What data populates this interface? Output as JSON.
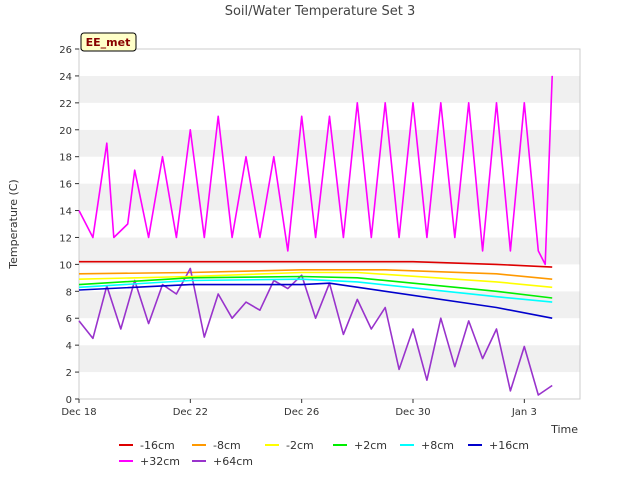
{
  "chart_data": {
    "type": "line",
    "title": "Soil/Water Temperature Set 3",
    "badge": "EE_met",
    "xlabel": "Time",
    "ylabel": "Temperature (C)",
    "ylim": [
      0,
      26
    ],
    "yticks": [
      0,
      2,
      4,
      6,
      8,
      10,
      12,
      14,
      16,
      18,
      20,
      22,
      24,
      26
    ],
    "xlim": [
      "2022-12-18",
      "2023-01-05"
    ],
    "xticks": [
      {
        "date": "2022-12-18",
        "label": "Dec 18"
      },
      {
        "date": "2022-12-22",
        "label": "Dec 22"
      },
      {
        "date": "2022-12-26",
        "label": "Dec 26"
      },
      {
        "date": "2022-12-30",
        "label": "Dec 30"
      },
      {
        "date": "2023-01-03",
        "label": "Jan 3"
      }
    ],
    "grid": "horizontal alternating bands",
    "legend_position": "bottom",
    "series": [
      {
        "name": "-16cm",
        "color": "#dd0000",
        "x": [
          "2022-12-18",
          "2022-12-22",
          "2022-12-26",
          "2022-12-30",
          "2023-01-02",
          "2023-01-04"
        ],
        "y": [
          10.2,
          10.2,
          10.2,
          10.2,
          10.0,
          9.8
        ]
      },
      {
        "name": "+32cm",
        "color": "#ff00ff",
        "x": [
          "2022-12-18",
          "2022-12-18 12:00",
          "2022-12-19",
          "2022-12-19 06:00",
          "2022-12-19 18:00",
          "2022-12-20",
          "2022-12-20 12:00",
          "2022-12-21",
          "2022-12-21 12:00",
          "2022-12-22",
          "2022-12-22 12:00",
          "2022-12-23",
          "2022-12-23 12:00",
          "2022-12-24",
          "2022-12-24 12:00",
          "2022-12-25",
          "2022-12-25 12:00",
          "2022-12-26",
          "2022-12-26 12:00",
          "2022-12-27",
          "2022-12-27 12:00",
          "2022-12-28",
          "2022-12-28 12:00",
          "2022-12-29",
          "2022-12-29 12:00",
          "2022-12-30",
          "2022-12-30 12:00",
          "2022-12-31",
          "2022-12-31 12:00",
          "2023-01-01",
          "2023-01-01 12:00",
          "2023-01-02",
          "2023-01-02 12:00",
          "2023-01-03",
          "2023-01-03 12:00",
          "2023-01-03 18:00",
          "2023-01-04"
        ],
        "y": [
          14,
          12,
          19,
          12,
          13,
          17,
          12,
          18,
          12,
          20,
          12,
          21,
          12,
          18,
          12,
          18,
          11,
          21,
          12,
          21,
          12,
          22,
          12,
          22,
          12,
          22,
          12,
          22,
          12,
          22,
          11,
          22,
          11,
          22,
          11,
          10,
          24
        ]
      },
      {
        "name": "-8cm",
        "color": "#ff9900",
        "x": [
          "2022-12-18",
          "2022-12-22",
          "2022-12-26",
          "2022-12-29",
          "2023-01-02",
          "2023-01-04"
        ],
        "y": [
          9.3,
          9.4,
          9.6,
          9.6,
          9.3,
          8.9
        ]
      },
      {
        "name": "+64cm",
        "color": "#9933cc",
        "x": [
          "2022-12-18",
          "2022-12-18 12:00",
          "2022-12-19",
          "2022-12-19 12:00",
          "2022-12-20",
          "2022-12-20 12:00",
          "2022-12-21",
          "2022-12-21 12:00",
          "2022-12-22",
          "2022-12-22 12:00",
          "2022-12-23",
          "2022-12-23 12:00",
          "2022-12-24",
          "2022-12-24 12:00",
          "2022-12-25",
          "2022-12-25 12:00",
          "2022-12-26",
          "2022-12-26 12:00",
          "2022-12-27",
          "2022-12-27 12:00",
          "2022-12-28",
          "2022-12-28 12:00",
          "2022-12-29",
          "2022-12-29 12:00",
          "2022-12-30",
          "2022-12-30 12:00",
          "2022-12-31",
          "2022-12-31 12:00",
          "2023-01-01",
          "2023-01-01 12:00",
          "2023-01-02",
          "2023-01-02 12:00",
          "2023-01-03",
          "2023-01-03 12:00",
          "2023-01-04"
        ],
        "y": [
          5.8,
          4.5,
          8.4,
          5.2,
          8.8,
          5.6,
          8.5,
          7.8,
          9.7,
          4.6,
          7.8,
          6.0,
          7.2,
          6.6,
          8.8,
          8.2,
          9.2,
          6.0,
          8.6,
          4.8,
          7.4,
          5.2,
          6.8,
          2.2,
          5.2,
          1.4,
          6.0,
          2.4,
          5.8,
          3.0,
          5.2,
          0.6,
          3.9,
          0.3,
          1.0
        ]
      },
      {
        "name": "-2cm",
        "color": "#ffff00",
        "x": [
          "2022-12-18",
          "2022-12-22",
          "2022-12-26",
          "2022-12-28",
          "2023-01-02",
          "2023-01-04"
        ],
        "y": [
          8.9,
          9.1,
          9.4,
          9.4,
          8.7,
          8.3
        ]
      },
      {
        "name": "+2cm",
        "color": "#00ee00",
        "x": [
          "2022-12-18",
          "2022-12-22",
          "2022-12-26",
          "2022-12-28",
          "2023-01-02",
          "2023-01-04"
        ],
        "y": [
          8.5,
          9.0,
          9.1,
          9.0,
          8.0,
          7.5
        ]
      },
      {
        "name": "+8cm",
        "color": "#00ffff",
        "x": [
          "2022-12-18",
          "2022-12-22",
          "2022-12-26",
          "2022-12-28",
          "2023-01-02",
          "2023-01-04"
        ],
        "y": [
          8.3,
          8.8,
          8.9,
          8.7,
          7.6,
          7.2
        ]
      },
      {
        "name": "+16cm",
        "color": "#0000cc",
        "x": [
          "2022-12-18",
          "2022-12-22",
          "2022-12-26",
          "2022-12-27",
          "2023-01-02",
          "2023-01-04"
        ],
        "y": [
          8.1,
          8.5,
          8.5,
          8.6,
          6.8,
          6.0
        ]
      }
    ]
  }
}
